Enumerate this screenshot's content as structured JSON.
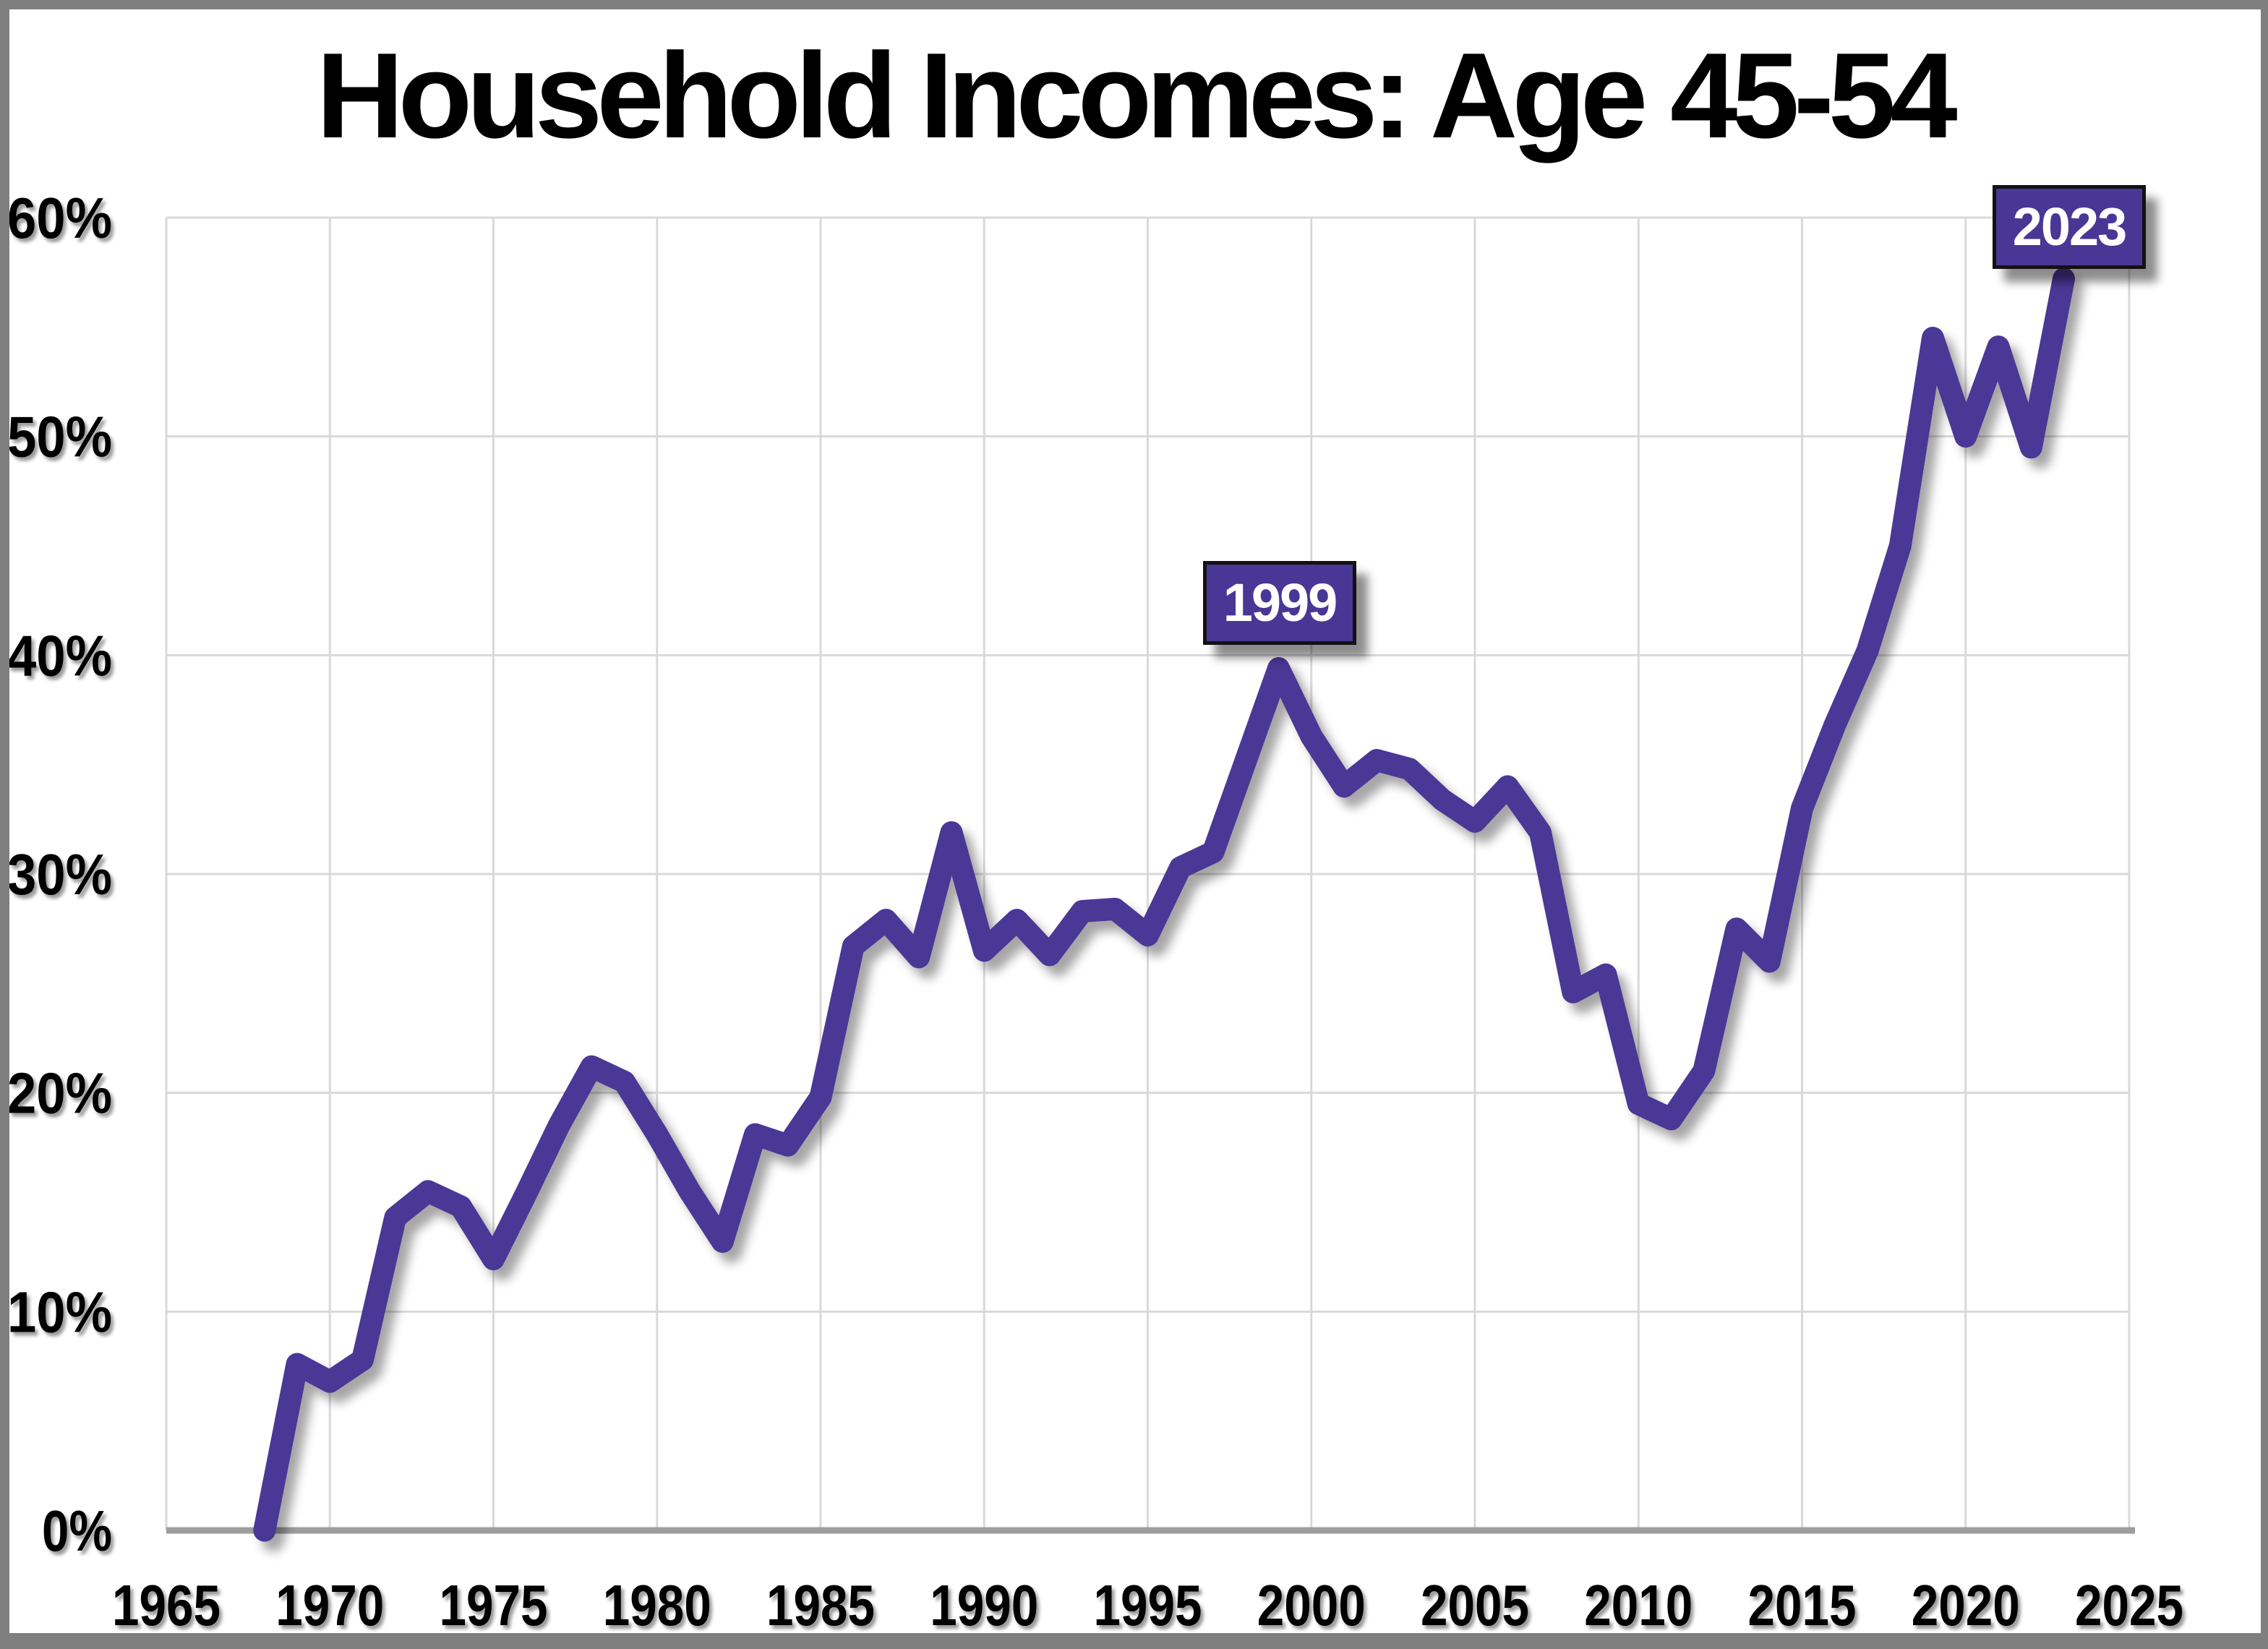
{
  "title": "Household Incomes: Age 45-54",
  "colors": {
    "line": "#483795",
    "callout_fill": "#483795",
    "callout_border": "#121212",
    "callout_text": "#ffffff",
    "gridline": "#d9d9d9",
    "axis_line": "#9d9d9d",
    "frame": "#7f7f7f",
    "title_text": "#000000",
    "tick_text": "#000000",
    "background": "#ffffff"
  },
  "chart_data": {
    "type": "line",
    "title": "Household Incomes: Age 45-54",
    "xlabel": "",
    "ylabel": "",
    "xlim": [
      1965,
      2025
    ],
    "ylim": [
      0,
      60
    ],
    "grid": true,
    "legend": "none",
    "x": [
      1968,
      1969,
      1970,
      1971,
      1972,
      1973,
      1974,
      1975,
      1976,
      1977,
      1978,
      1979,
      1980,
      1981,
      1982,
      1983,
      1984,
      1985,
      1986,
      1987,
      1988,
      1989,
      1990,
      1991,
      1992,
      1993,
      1994,
      1995,
      1996,
      1997,
      1998,
      1999,
      2000,
      2001,
      2002,
      2003,
      2004,
      2005,
      2006,
      2007,
      2008,
      2009,
      2010,
      2011,
      2012,
      2013,
      2014,
      2015,
      2016,
      2017,
      2018,
      2019,
      2020,
      2021,
      2022,
      2023
    ],
    "values": [
      0.0,
      7.6,
      6.8,
      7.8,
      14.3,
      15.5,
      14.8,
      12.4,
      15.4,
      18.5,
      21.2,
      20.5,
      18.1,
      15.5,
      13.2,
      18.1,
      17.6,
      19.8,
      26.7,
      27.9,
      26.2,
      31.9,
      26.5,
      27.9,
      26.3,
      28.3,
      28.4,
      27.2,
      30.3,
      31.0,
      35.2,
      39.4,
      36.3,
      34.0,
      35.2,
      34.8,
      33.4,
      32.4,
      34.0,
      31.9,
      24.6,
      25.4,
      19.5,
      18.8,
      21.0,
      27.5,
      26.0,
      33.0,
      36.8,
      40.2,
      45.0,
      54.5,
      50.0,
      54.1,
      49.5,
      57.2
    ],
    "x_ticks": [
      "1965",
      "1970",
      "1975",
      "1980",
      "1985",
      "1990",
      "1995",
      "2000",
      "2005",
      "2010",
      "2015",
      "2020",
      "2025"
    ],
    "y_ticks": [
      {
        "value": 0,
        "label": "0%"
      },
      {
        "value": 10,
        "label": "10%"
      },
      {
        "value": 20,
        "label": "20%"
      },
      {
        "value": 30,
        "label": "30%"
      },
      {
        "value": 40,
        "label": "40%"
      },
      {
        "value": 50,
        "label": "50%"
      },
      {
        "value": 60,
        "label": "60%"
      }
    ],
    "annotations": [
      {
        "label": "1999",
        "year": 1999,
        "value": 39.4
      },
      {
        "label": "2023",
        "year": 2023,
        "value": 57.2
      }
    ]
  }
}
